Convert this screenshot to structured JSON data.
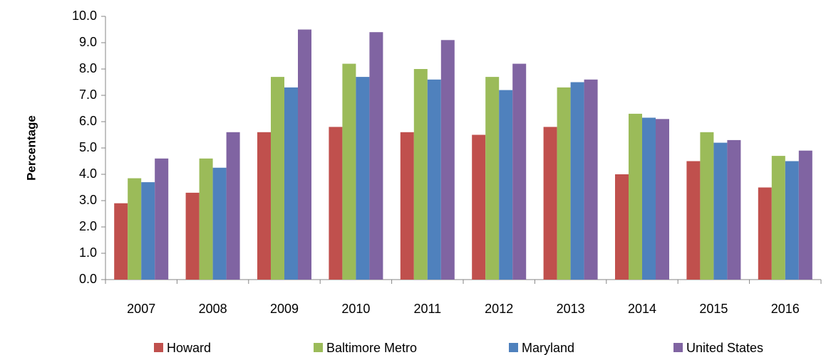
{
  "chart_data": {
    "type": "bar",
    "y_label": "Percentage",
    "categories": [
      "2007",
      "2008",
      "2009",
      "2010",
      "2011",
      "2012",
      "2013",
      "2014",
      "2015",
      "2016"
    ],
    "series": [
      {
        "name": "Howard",
        "color": "#c0504d",
        "values": [
          2.9,
          3.3,
          5.6,
          5.8,
          5.6,
          5.5,
          5.8,
          4.0,
          4.5,
          3.5
        ]
      },
      {
        "name": "Baltimore Metro",
        "color": "#9bbb59",
        "values": [
          3.85,
          4.6,
          7.7,
          8.2,
          8.0,
          7.7,
          7.3,
          6.3,
          5.6,
          4.7
        ]
      },
      {
        "name": "Maryland",
        "color": "#4f81bd",
        "values": [
          3.7,
          4.25,
          7.3,
          7.7,
          7.6,
          7.2,
          7.5,
          6.15,
          5.2,
          4.5
        ]
      },
      {
        "name": "United States",
        "color": "#8064a2",
        "values": [
          4.6,
          5.6,
          9.5,
          9.4,
          9.1,
          8.2,
          7.6,
          6.1,
          5.3,
          4.9
        ]
      }
    ],
    "ylim": [
      0,
      10
    ],
    "yticks": [
      {
        "value": 0,
        "label": "0.0"
      },
      {
        "value": 1,
        "label": "1.0"
      },
      {
        "value": 2,
        "label": "2.0"
      },
      {
        "value": 3,
        "label": "3.0"
      },
      {
        "value": 4,
        "label": "4.0"
      },
      {
        "value": 5,
        "label": "5.0"
      },
      {
        "value": 6,
        "label": "6.0"
      },
      {
        "value": 7,
        "label": "7.0"
      },
      {
        "value": 8,
        "label": "8.0"
      },
      {
        "value": 9,
        "label": "9.0"
      },
      {
        "value": 10,
        "label": "10.0"
      }
    ],
    "grid": false,
    "legend": "bottom"
  }
}
